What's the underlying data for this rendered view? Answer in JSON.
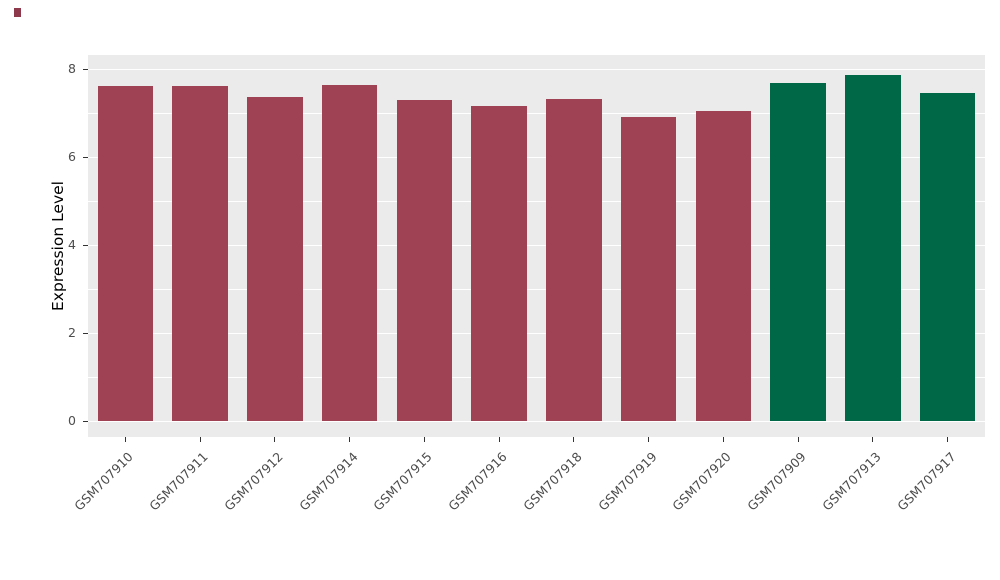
{
  "page": {
    "background": "#FFFFFF"
  },
  "decorations": {
    "stray_mark_color": "#8E3A4C"
  },
  "chart_data": {
    "type": "bar",
    "title": "",
    "xlabel": "",
    "ylabel": "Expression Level",
    "ylim": [
      0,
      8
    ],
    "yticks": [
      0,
      2,
      4,
      6,
      8
    ],
    "yticks_minor": [
      1,
      3,
      5,
      7
    ],
    "grid": true,
    "legend": "none",
    "panel_background": "#EBEBEB",
    "gridline_color": "#FFFFFF",
    "axis_text_color": "#4D4D4D",
    "categories": [
      "GSM707910",
      "GSM707911",
      "GSM707912",
      "GSM707914",
      "GSM707915",
      "GSM707916",
      "GSM707918",
      "GSM707919",
      "GSM707920",
      "GSM707909",
      "GSM707913",
      "GSM707917"
    ],
    "values": [
      7.62,
      7.62,
      7.37,
      7.64,
      7.3,
      7.16,
      7.32,
      6.9,
      7.05,
      7.68,
      7.86,
      7.46
    ],
    "bar_colors": [
      "#9F4253",
      "#9F4253",
      "#9F4253",
      "#9F4253",
      "#9F4253",
      "#9F4253",
      "#9F4253",
      "#9F4253",
      "#9F4253",
      "#006747",
      "#006747",
      "#006747"
    ],
    "color_groups": [
      {
        "color": "#9F4253",
        "samples": [
          "GSM707910",
          "GSM707911",
          "GSM707912",
          "GSM707914",
          "GSM707915",
          "GSM707916",
          "GSM707918",
          "GSM707919",
          "GSM707920"
        ]
      },
      {
        "color": "#006747",
        "samples": [
          "GSM707909",
          "GSM707913",
          "GSM707917"
        ]
      }
    ]
  }
}
